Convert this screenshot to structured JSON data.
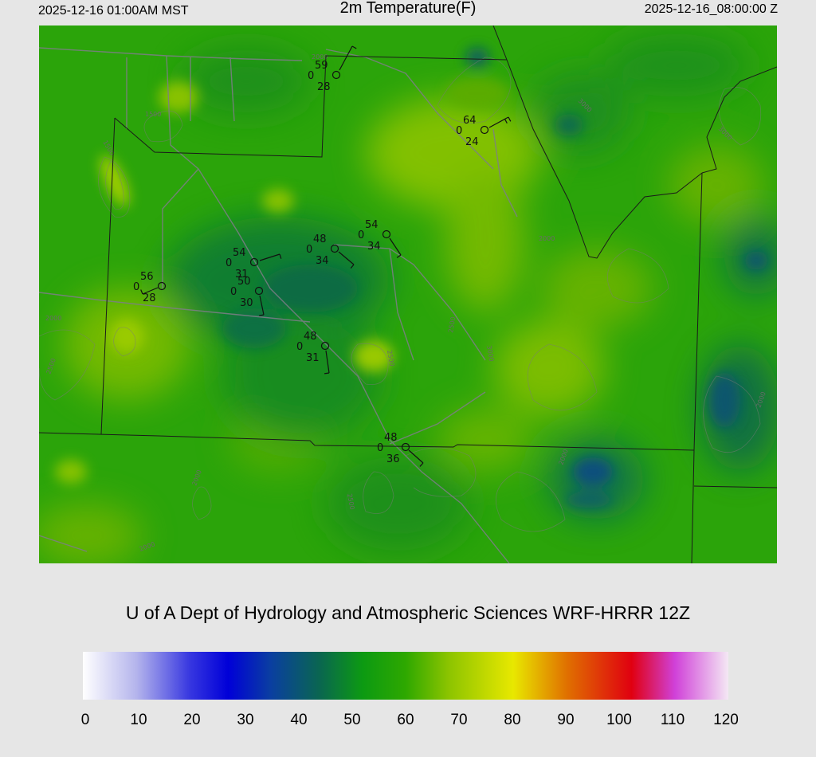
{
  "header": {
    "local_time": "2025-12-16 01:00AM MST",
    "title": "2m Temperature(F)",
    "utc_time": "2025-12-16_08:00:00 Z"
  },
  "credit": "U of A Dept of Hydrology and Atmospheric Sciences WRF-HRRR 12Z",
  "colorbar": {
    "ticks": [
      "0",
      "10",
      "20",
      "30",
      "40",
      "50",
      "60",
      "70",
      "80",
      "90",
      "100",
      "110",
      "120"
    ],
    "stops": [
      {
        "v": 0,
        "c": "#ffffff"
      },
      {
        "v": 10,
        "c": "#b4b4ec"
      },
      {
        "v": 20,
        "c": "#3636e0"
      },
      {
        "v": 27,
        "c": "#0000d8"
      },
      {
        "v": 35,
        "c": "#0a3fa0"
      },
      {
        "v": 44,
        "c": "#0a6650"
      },
      {
        "v": 52,
        "c": "#0c9a12"
      },
      {
        "v": 60,
        "c": "#2ea800"
      },
      {
        "v": 68,
        "c": "#8cc400"
      },
      {
        "v": 80,
        "c": "#e8e800"
      },
      {
        "v": 90,
        "c": "#e07000"
      },
      {
        "v": 102,
        "c": "#e00010"
      },
      {
        "v": 110,
        "c": "#d040d8"
      },
      {
        "v": 120,
        "c": "#f4e8f4"
      }
    ]
  },
  "contour_labels": [
    "1500",
    "1500",
    "2000",
    "2000",
    "2000",
    "2000",
    "2000",
    "2500",
    "2500",
    "2500",
    "2500",
    "3000",
    "3000",
    "3000",
    "2000",
    "2000"
  ],
  "stations": [
    {
      "temp": "59",
      "cloud": "0",
      "dew": "28"
    },
    {
      "temp": "64",
      "cloud": "0",
      "dew": "24"
    },
    {
      "temp": "54",
      "cloud": "0",
      "dew": "34"
    },
    {
      "temp": "48",
      "cloud": "0",
      "dew": "34"
    },
    {
      "temp": "54",
      "cloud": "0",
      "dew": "31"
    },
    {
      "temp": "56",
      "cloud": "0",
      "dew": "28"
    },
    {
      "temp": "50",
      "cloud": "0",
      "dew": "30"
    },
    {
      "temp": "48",
      "cloud": "0",
      "dew": "31"
    },
    {
      "temp": "48",
      "cloud": "0",
      "dew": "36"
    }
  ]
}
